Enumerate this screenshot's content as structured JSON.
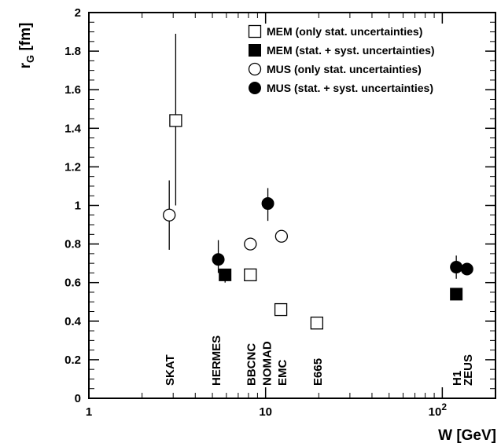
{
  "chart_data": {
    "type": "scatter",
    "x_scale": "log",
    "xlim": [
      1,
      200
    ],
    "ylim": [
      0,
      2
    ],
    "ylabel": "r_G [fm]",
    "ylabel_main": "r",
    "ylabel_sub": "G",
    "ylabel_unit": " [fm]",
    "xlabel": "W [GeV]",
    "y_ticks": [
      "0",
      "0.2",
      "0.4",
      "0.6",
      "0.8",
      "1",
      "1.2",
      "1.4",
      "1.6",
      "1.8",
      "2"
    ],
    "x_tick_labels": [
      {
        "value": 1,
        "label": "1"
      },
      {
        "value": 10,
        "label": "10"
      },
      {
        "value": 100,
        "label": "10",
        "exponent": "2"
      }
    ],
    "grid": false,
    "legend_position": "top-right",
    "series": [
      {
        "name": "MEM (only stat. uncertainties)",
        "marker": "open-square",
        "points": [
          {
            "x": 3.1,
            "y": 1.44,
            "err_low": 0.44,
            "err_high": 0.45
          },
          {
            "x": 8.2,
            "y": 0.64
          },
          {
            "x": 12.2,
            "y": 0.46
          },
          {
            "x": 19.5,
            "y": 0.39
          }
        ]
      },
      {
        "name": "MEM (stat. + syst. uncertainties)",
        "marker": "filled-square",
        "points": [
          {
            "x": 5.9,
            "y": 0.64,
            "err_low": 0.04,
            "err_high": 0.02
          },
          {
            "x": 120,
            "y": 0.54,
            "err_low": 0.03,
            "err_high": 0.03
          }
        ]
      },
      {
        "name": "MUS (only stat. uncertainties)",
        "marker": "open-circle",
        "points": [
          {
            "x": 2.85,
            "y": 0.95,
            "err_low": 0.18,
            "err_high": 0.18
          },
          {
            "x": 8.2,
            "y": 0.8
          },
          {
            "x": 12.3,
            "y": 0.84
          }
        ]
      },
      {
        "name": "MUS (stat. + syst. uncertainties)",
        "marker": "filled-circle",
        "points": [
          {
            "x": 5.4,
            "y": 0.72,
            "err_low": 0.07,
            "err_high": 0.1
          },
          {
            "x": 10.3,
            "y": 1.01,
            "err_low": 0.09,
            "err_high": 0.08
          },
          {
            "x": 120,
            "y": 0.68,
            "err_low": 0.06,
            "err_high": 0.06
          },
          {
            "x": 138,
            "y": 0.67,
            "err_low": 0.03,
            "err_high": 0.03
          }
        ]
      }
    ],
    "annotations": [
      {
        "text": "SKAT",
        "x": 2.85
      },
      {
        "text": "HERMES",
        "x": 5.2
      },
      {
        "text": "BBCNC",
        "x": 8.2
      },
      {
        "text": "NOMAD",
        "x": 10.1
      },
      {
        "text": "EMC",
        "x": 12.3
      },
      {
        "text": "E665",
        "x": 19.5
      },
      {
        "text": "H1",
        "x": 120
      },
      {
        "text": "ZEUS",
        "x": 138
      }
    ]
  }
}
